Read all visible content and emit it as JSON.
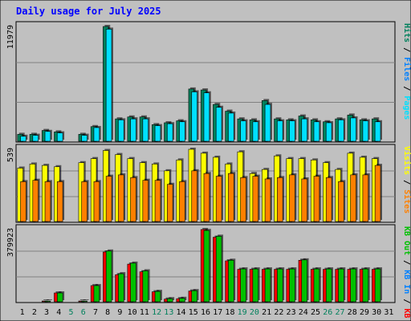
{
  "title": "Daily usage for July 2025",
  "colors": {
    "background": "#c0c0c0",
    "plot_bg": "#c0c0c0",
    "title": "#0000ff",
    "hits": "#00805c",
    "files": "#0000ff",
    "pages": "#00e0ff",
    "visits": "#ffff00",
    "sites": "#ff8000",
    "kb_f": "#ff0000",
    "kb_in": "#0080ff",
    "kb_out": "#00c000",
    "weekday_label": "#000000",
    "weekend_label": "#00805c"
  },
  "chart_data": [
    {
      "type": "bar",
      "name": "hits_files_pages",
      "ymax_label": "11979",
      "ymax": 11979,
      "legend": [
        {
          "label": "Pages",
          "color": "#00e0ff"
        },
        {
          "label": "Files",
          "color": "#0080ff"
        },
        {
          "label": "Hits",
          "color": "#00805c"
        }
      ],
      "categories": [
        "1",
        "2",
        "3",
        "4",
        "5",
        "6",
        "7",
        "8",
        "9",
        "10",
        "11",
        "12",
        "13",
        "14",
        "15",
        "16",
        "17",
        "18",
        "19",
        "20",
        "21",
        "22",
        "23",
        "24",
        "25",
        "26",
        "27",
        "28",
        "29",
        "30",
        "31"
      ],
      "weekend": [
        5,
        6,
        12,
        13,
        19,
        20,
        26,
        27
      ],
      "series": [
        {
          "name": "Hits",
          "values": [
            800,
            800,
            1200,
            1050,
            null,
            800,
            1600,
            11979,
            2400,
            2600,
            2600,
            1800,
            2000,
            2200,
            5500,
            5400,
            3900,
            3200,
            2400,
            2300,
            4300,
            2400,
            2300,
            2700,
            2300,
            2100,
            2400,
            2800,
            2300,
            2400,
            null
          ]
        },
        {
          "name": "Pages",
          "values": [
            600,
            700,
            1100,
            950,
            null,
            700,
            1500,
            11700,
            2300,
            2400,
            2400,
            1700,
            1900,
            2100,
            5200,
            5100,
            3600,
            3000,
            2200,
            2100,
            3900,
            2200,
            2200,
            2400,
            2100,
            2000,
            2300,
            2500,
            2200,
            2100,
            null
          ]
        }
      ]
    },
    {
      "type": "bar",
      "name": "visits_sites",
      "ymax_label": "539",
      "ymax": 539,
      "legend": [
        {
          "label": "Sites",
          "color": "#ff8000"
        },
        {
          "label": "Visits",
          "color": "#ffff00"
        }
      ],
      "categories": [
        "1",
        "2",
        "3",
        "4",
        "5",
        "6",
        "7",
        "8",
        "9",
        "10",
        "11",
        "12",
        "13",
        "14",
        "15",
        "16",
        "17",
        "18",
        "19",
        "20",
        "21",
        "22",
        "23",
        "24",
        "25",
        "26",
        "27",
        "28",
        "29",
        "30",
        "31"
      ],
      "series": [
        {
          "name": "Visits",
          "values": [
            400,
            430,
            420,
            410,
            null,
            440,
            470,
            530,
            500,
            470,
            440,
            430,
            380,
            460,
            539,
            510,
            480,
            430,
            520,
            360,
            390,
            490,
            470,
            470,
            460,
            440,
            390,
            510,
            480,
            470,
            null
          ]
        },
        {
          "name": "Sites",
          "values": [
            300,
            310,
            300,
            300,
            null,
            300,
            300,
            340,
            350,
            330,
            310,
            310,
            280,
            300,
            380,
            360,
            340,
            360,
            330,
            340,
            320,
            330,
            350,
            320,
            340,
            330,
            300,
            350,
            350,
            420,
            null
          ]
        }
      ]
    },
    {
      "type": "bar",
      "name": "kbf_kbin_kbout",
      "ymax_label": "379923",
      "ymax": 379923,
      "legend": [
        {
          "label": "KB F",
          "color": "#ff0000"
        },
        {
          "label": "KB In",
          "color": "#0080ff"
        },
        {
          "label": "KB Out",
          "color": "#00c000"
        }
      ],
      "categories": [
        "1",
        "2",
        "3",
        "4",
        "5",
        "6",
        "7",
        "8",
        "9",
        "10",
        "11",
        "12",
        "13",
        "14",
        "15",
        "16",
        "17",
        "18",
        "19",
        "20",
        "21",
        "22",
        "23",
        "24",
        "25",
        "26",
        "27",
        "28",
        "29",
        "30",
        "31"
      ],
      "series": [
        {
          "name": "KB F",
          "values": [
            5000,
            5000,
            8000,
            50000,
            null,
            8000,
            88000,
            263000,
            145000,
            200000,
            160000,
            56000,
            18000,
            20000,
            60000,
            379923,
            340000,
            217000,
            173000,
            173000,
            173000,
            173000,
            173000,
            220000,
            173000,
            173000,
            173000,
            173000,
            173000,
            173000,
            null
          ]
        },
        {
          "name": "KB Out",
          "values": [
            5000,
            5000,
            8000,
            50000,
            null,
            8000,
            88000,
            268000,
            150000,
            205000,
            165000,
            58000,
            20000,
            22000,
            62000,
            375000,
            345000,
            220000,
            175000,
            175000,
            175000,
            175000,
            175000,
            222000,
            175000,
            175000,
            175000,
            175000,
            175000,
            175000,
            null
          ]
        }
      ]
    }
  ]
}
